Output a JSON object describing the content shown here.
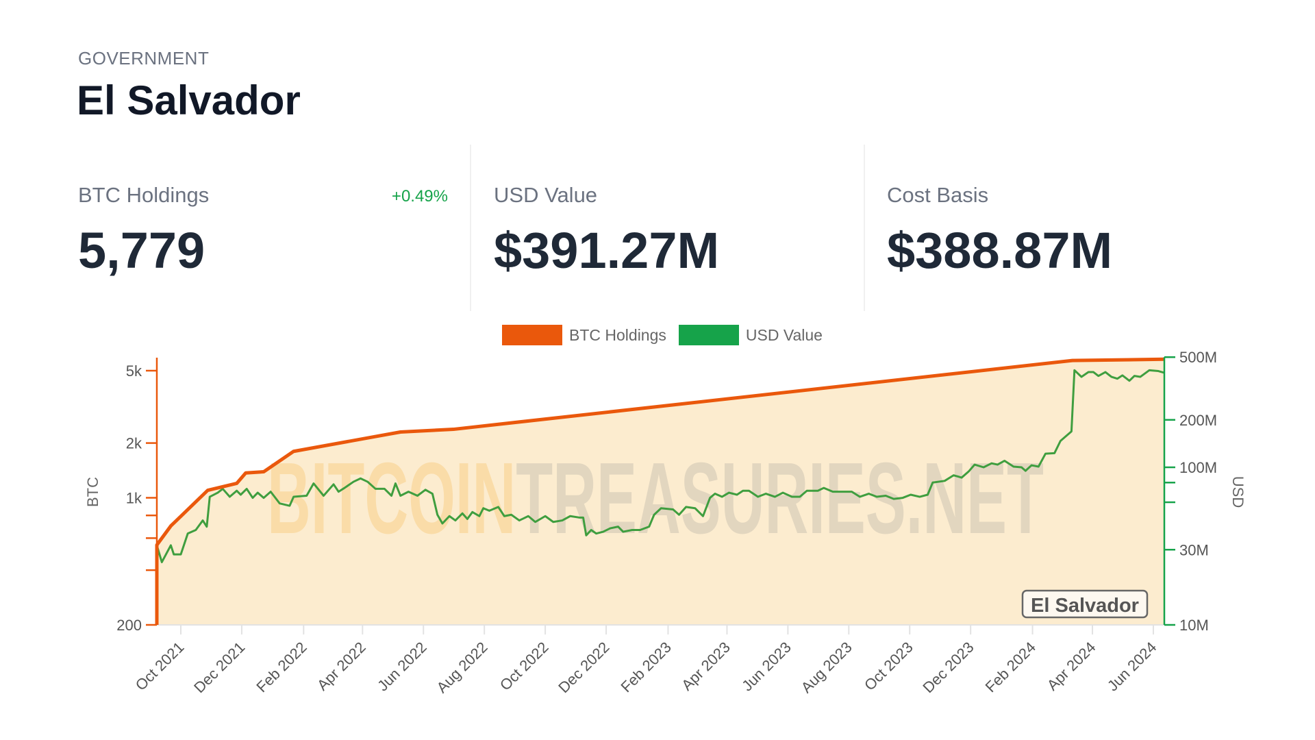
{
  "header": {
    "category": "GOVERNMENT",
    "title": "El Salvador"
  },
  "stats": [
    {
      "label": "BTC Holdings",
      "value": "5,779",
      "change": "+0.49%"
    },
    {
      "label": "USD Value",
      "value": "$391.27M"
    },
    {
      "label": "Cost Basis",
      "value": "$388.87M"
    }
  ],
  "colors": {
    "btc": "#ea580c",
    "usd_line": "#3f9e3f",
    "usd_axis": "#16a34a",
    "fill": "#fcebcc"
  },
  "watermark": {
    "part1": "BITCOIN",
    "part2": "TREASURIES.NET"
  },
  "chart_data": {
    "type": "line",
    "title": "",
    "legend": [
      "BTC Holdings",
      "USD Value"
    ],
    "legend_placement": "top-center",
    "annotation": "El Salvador",
    "x_start_date": "2021-09-07",
    "x_unit": "days since 2021-09-07",
    "xlim": [
      0,
      1009
    ],
    "x_ticks": [
      {
        "date": "2021-10-01",
        "label": "Oct 2021"
      },
      {
        "date": "2021-12-01",
        "label": "Dec 2021"
      },
      {
        "date": "2022-02-01",
        "label": "Feb 2022"
      },
      {
        "date": "2022-04-01",
        "label": "Apr 2022"
      },
      {
        "date": "2022-06-01",
        "label": "Jun 2022"
      },
      {
        "date": "2022-08-01",
        "label": "Aug 2022"
      },
      {
        "date": "2022-10-01",
        "label": "Oct 2022"
      },
      {
        "date": "2022-12-01",
        "label": "Dec 2022"
      },
      {
        "date": "2023-02-01",
        "label": "Feb 2023"
      },
      {
        "date": "2023-04-01",
        "label": "Apr 2023"
      },
      {
        "date": "2023-06-01",
        "label": "Jun 2023"
      },
      {
        "date": "2023-08-01",
        "label": "Aug 2023"
      },
      {
        "date": "2023-10-01",
        "label": "Oct 2023"
      },
      {
        "date": "2023-12-01",
        "label": "Dec 2023"
      },
      {
        "date": "2024-02-01",
        "label": "Feb 2024"
      },
      {
        "date": "2024-04-01",
        "label": "Apr 2024"
      },
      {
        "date": "2024-06-01",
        "label": "Jun 2024"
      }
    ],
    "y_left": {
      "label": "BTC",
      "scale": "log",
      "ylim": [
        200,
        5779
      ],
      "ticks": [
        {
          "v": 200,
          "label": "200"
        },
        {
          "v": 400,
          "label": ""
        },
        {
          "v": 600,
          "label": ""
        },
        {
          "v": 800,
          "label": ""
        },
        {
          "v": 1000,
          "label": "1k"
        },
        {
          "v": 2000,
          "label": "2k"
        },
        {
          "v": 5000,
          "label": "5k"
        }
      ]
    },
    "y_right": {
      "label": "USD",
      "scale": "log",
      "ylim": [
        10000000,
        500000000
      ],
      "ticks": [
        {
          "v": 10000000,
          "label": "10M"
        },
        {
          "v": 30000000,
          "label": "30M"
        },
        {
          "v": 60000000,
          "label": ""
        },
        {
          "v": 80000000,
          "label": ""
        },
        {
          "v": 100000000,
          "label": "100M"
        },
        {
          "v": 200000000,
          "label": "200M"
        },
        {
          "v": 500000000,
          "label": "500M"
        }
      ]
    },
    "series": [
      {
        "name": "BTC Holdings",
        "axis": "left",
        "x": [
          0,
          0,
          14,
          51,
          80,
          89,
          107,
          137,
          244,
          297,
          917,
          1009
        ],
        "y": [
          200,
          550,
          700,
          1100,
          1200,
          1370,
          1390,
          1800,
          2300,
          2380,
          5690,
          5779
        ]
      },
      {
        "name": "USD Value",
        "axis": "right",
        "x": [
          0,
          5,
          14,
          17,
          24,
          31,
          39,
          46,
          50,
          53,
          61,
          66,
          73,
          80,
          84,
          90,
          96,
          101,
          107,
          114,
          123,
          133,
          137,
          150,
          157,
          167,
          177,
          182,
          188,
          197,
          204,
          211,
          219,
          228,
          235,
          239,
          244,
          252,
          261,
          269,
          276,
          281,
          286,
          293,
          299,
          306,
          311,
          316,
          323,
          327,
          333,
          342,
          348,
          355,
          363,
          372,
          379,
          389,
          397,
          406,
          414,
          423,
          427,
          430,
          435,
          440,
          447,
          454,
          462,
          467,
          476,
          484,
          493,
          498,
          505,
          517,
          523,
          530,
          539,
          547,
          554,
          559,
          566,
          573,
          581,
          587,
          593,
          602,
          610,
          619,
          627,
          636,
          644,
          651,
          662,
          668,
          677,
          687,
          696,
          704,
          713,
          721,
          730,
          738,
          747,
          755,
          764,
          772,
          777,
          789,
          798,
          806,
          813,
          819,
          828,
          836,
          842,
          849,
          858,
          866,
          870,
          876,
          883,
          890,
          899,
          905,
          916,
          919,
          926,
          933,
          938,
          943,
          950,
          956,
          962,
          967,
          974,
          979,
          985,
          994,
          1003,
          1009
        ],
        "y": [
          32,
          25,
          32,
          28,
          28,
          38,
          40,
          46,
          42,
          65,
          69,
          73,
          65,
          71,
          67,
          73,
          64,
          69,
          64,
          70,
          59,
          57,
          65,
          66,
          79,
          66,
          78,
          70,
          74,
          81,
          85,
          81,
          73,
          73,
          66,
          79,
          66,
          70,
          66,
          72,
          68,
          50,
          44,
          49,
          46,
          51,
          47,
          52,
          49,
          55,
          53,
          56,
          49,
          50,
          46,
          49,
          45,
          49,
          45,
          46,
          49,
          48,
          48,
          37,
          40,
          38,
          39,
          41,
          42,
          39,
          40,
          40,
          42,
          50,
          55,
          54,
          50,
          56,
          55,
          49,
          64,
          68,
          65,
          69,
          67,
          71,
          71,
          65,
          68,
          65,
          69,
          65,
          65,
          71,
          71,
          74,
          70,
          70,
          70,
          65,
          68,
          65,
          66,
          63,
          64,
          67,
          65,
          67,
          80,
          82,
          89,
          86,
          94,
          104,
          100,
          106,
          104,
          110,
          101,
          100,
          95,
          103,
          101,
          122,
          123,
          147,
          169,
          413,
          375,
          402,
          402,
          380,
          402,
          375,
          365,
          383,
          354,
          380,
          375,
          413,
          408,
          398
        ],
        "y_unit": "millions USD"
      }
    ]
  }
}
